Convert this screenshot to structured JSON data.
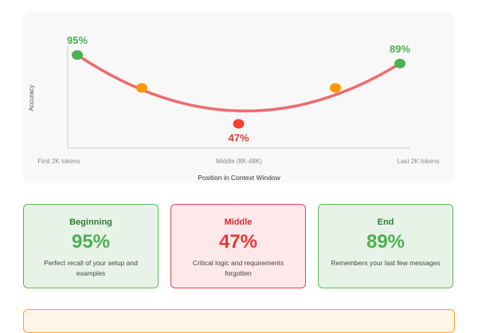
{
  "colors": {
    "curve": "#ee6b6e",
    "start_point": "#4caf50",
    "end_point": "#4caf50",
    "side_points": "#ff9800",
    "middle_point": "#f44336",
    "label_green": "#4caf50",
    "label_red": "#e53935"
  },
  "chart_data": {
    "type": "line",
    "title": "",
    "xlabel": "Position in Context Window",
    "ylabel": "Accuracy",
    "x_tick_labels": [
      "First 2K tokens",
      "Middle (8K-48K)",
      "Last 2K tokens"
    ],
    "ylim": [
      0,
      100
    ],
    "grid": false,
    "series": [
      {
        "values": [
          {
            "x": 0.0,
            "y": 95
          },
          {
            "x": 0.2,
            "y": 72
          },
          {
            "x": 0.5,
            "y": 47
          },
          {
            "x": 0.8,
            "y": 72
          },
          {
            "x": 1.0,
            "y": 89
          }
        ]
      }
    ],
    "data_labels": [
      {
        "x": 0.0,
        "text": "95%"
      },
      {
        "x": 0.5,
        "text": "47%"
      },
      {
        "x": 1.0,
        "text": "89%"
      }
    ]
  },
  "cards": [
    {
      "title": "Beginning",
      "value": "95%",
      "description": "Perfect recall of your setup and examples"
    },
    {
      "title": "Middle",
      "value": "47%",
      "description": "Critical logic and requirements forgotten"
    },
    {
      "title": "End",
      "value": "89%",
      "description": "Remembers your last few messages"
    }
  ]
}
